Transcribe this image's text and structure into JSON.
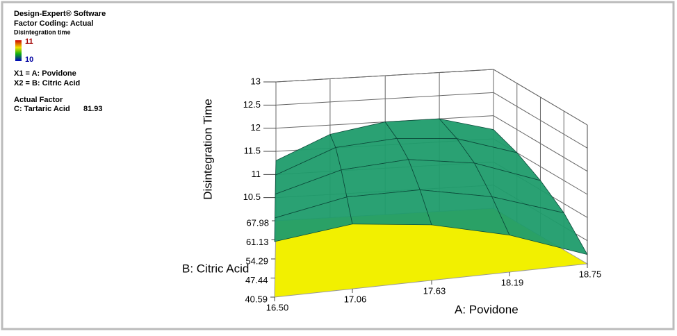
{
  "chart_data": {
    "type": "surface",
    "annotations": [
      "Design-Expert® Software",
      "Factor Coding: Actual",
      "Disintegration time",
      "X1 = A: Povidone",
      "X2 = B: Citric Acid",
      "Actual Factor"
    ],
    "actual_factor": {
      "name": "C: Tartaric Acid",
      "value": 81.93
    },
    "legend": {
      "max": 11,
      "min": 10
    },
    "x_label": "A: Povidone",
    "y_label": "B: Citric Acid",
    "z_label": "Disintegration Time",
    "xlim": [
      16.5,
      18.75
    ],
    "xticks": [
      {
        "value": 16.5,
        "label": "16.50"
      },
      17.06,
      17.63,
      18.19,
      18.75
    ],
    "ylim": [
      40.59,
      67.98
    ],
    "yticks": [
      40.59,
      47.44,
      54.29,
      61.13,
      67.98
    ],
    "zlim": [
      10,
      13
    ],
    "zticks": [
      10.5,
      11,
      11.5,
      12,
      12.5,
      13
    ],
    "x": [
      16.5,
      17.06,
      17.63,
      18.19,
      18.75
    ],
    "y": [
      40.59,
      47.44,
      54.29,
      61.13,
      67.98
    ],
    "z": [
      [
        11.2,
        11.4,
        11.2,
        10.8,
        10.2
      ],
      [
        11.3,
        11.6,
        11.6,
        11.3,
        10.8
      ],
      [
        11.4,
        11.8,
        11.9,
        11.7,
        11.2
      ],
      [
        11.4,
        11.9,
        12.0,
        11.9,
        11.5
      ],
      [
        11.3,
        11.8,
        12.0,
        12.0,
        11.7
      ]
    ],
    "surface_color": "#1f9c6c",
    "mesh_color": "#0b4a3a",
    "floor_color": "#f2f000",
    "grid": true
  }
}
